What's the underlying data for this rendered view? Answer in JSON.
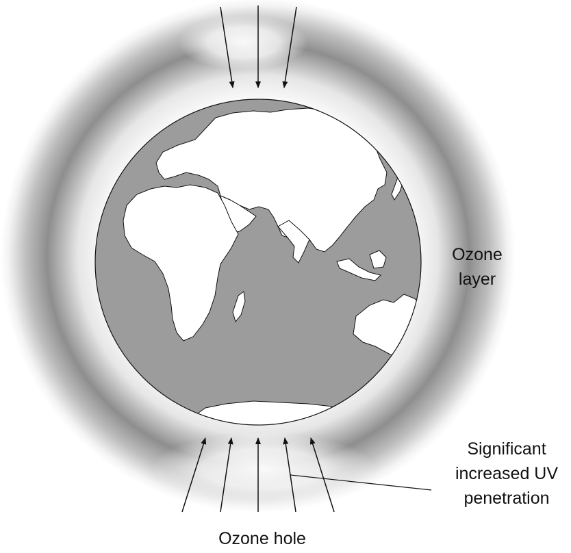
{
  "labels": {
    "ozone_layer_line1": "Ozone",
    "ozone_layer_line2": "layer",
    "uv_line1": "Significant",
    "uv_line2": "increased UV",
    "uv_line3": "penetration",
    "ozone_hole": "Ozone hole"
  },
  "colors": {
    "background": "#ffffff",
    "ozone_band": "#8e8e8e",
    "ocean": "#9c9c9c",
    "land": "#ffffff",
    "outline": "#111111"
  }
}
